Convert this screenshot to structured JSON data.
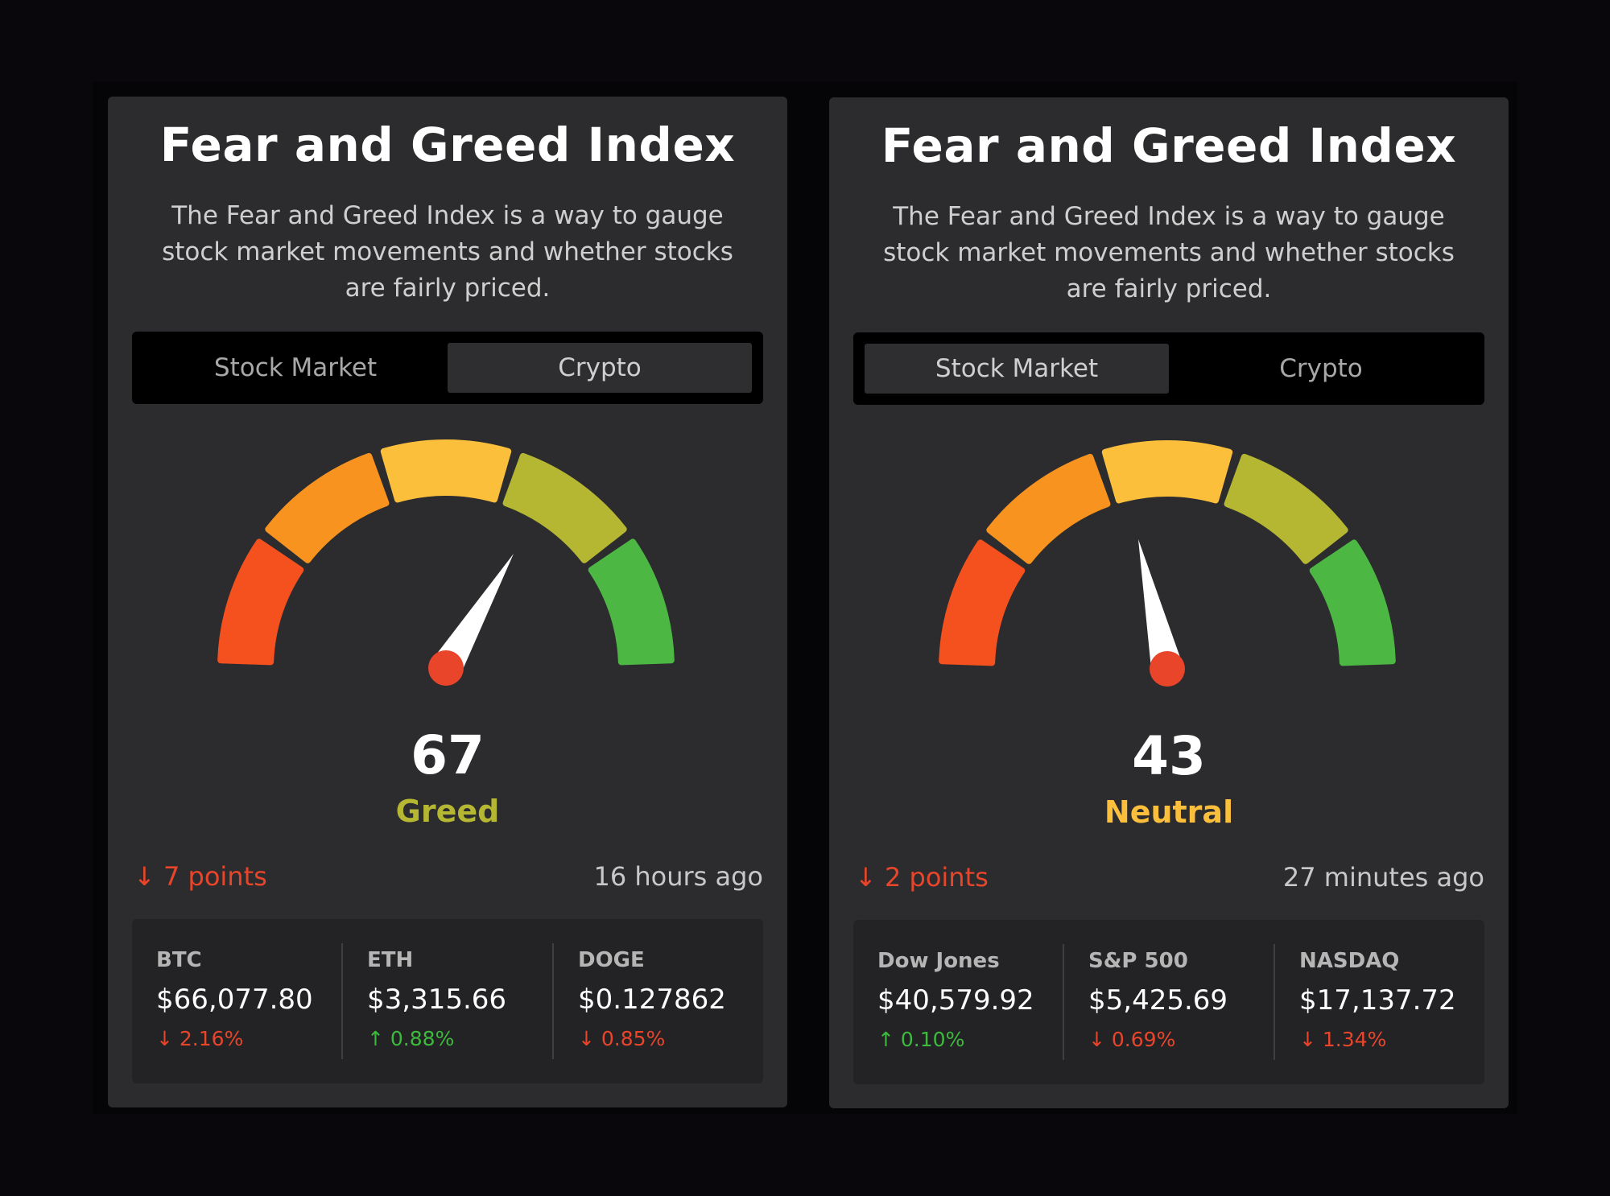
{
  "colors": {
    "fear": "#f4511e",
    "fear_mid": "#f7931e",
    "neutral": "#fbbf3c",
    "greed_mid": "#b5b733",
    "greed": "#4cb843",
    "needle": "#ffffff",
    "needle_hub": "#e8452b",
    "greed_label": "#b5b733",
    "neutral_label": "#fbbf3c",
    "down": "#e8452b",
    "up": "#3dba3d"
  },
  "cards": [
    {
      "title": "Fear and Greed Index",
      "description": "The Fear and Greed Index is a way to gauge stock market movements and whether stocks are fairly priced.",
      "tabs": [
        "Stock Market",
        "Crypto"
      ],
      "active_tab": "Crypto",
      "score": "67",
      "score_value": 67,
      "label": "Greed",
      "change": "7 points",
      "change_direction": "down",
      "updated": "16 hours ago",
      "tickers": [
        {
          "name": "BTC",
          "price": "$66,077.80",
          "change": "2.16%",
          "direction": "down"
        },
        {
          "name": "ETH",
          "price": "$3,315.66",
          "change": "0.88%",
          "direction": "up"
        },
        {
          "name": "DOGE",
          "price": "$0.127862",
          "change": "0.85%",
          "direction": "down"
        }
      ]
    },
    {
      "title": "Fear and Greed Index",
      "description": "The Fear and Greed Index is a way to gauge stock market movements and whether stocks are fairly priced.",
      "tabs": [
        "Stock Market",
        "Crypto"
      ],
      "active_tab": "Stock Market",
      "score": "43",
      "score_value": 43,
      "label": "Neutral",
      "change": "2 points",
      "change_direction": "down",
      "updated": "27 minutes ago",
      "tickers": [
        {
          "name": "Dow Jones",
          "price": "$40,579.92",
          "change": "0.10%",
          "direction": "up"
        },
        {
          "name": "S&P 500",
          "price": "$5,425.69",
          "change": "0.69%",
          "direction": "down"
        },
        {
          "name": "NASDAQ",
          "price": "$17,137.72",
          "change": "1.34%",
          "direction": "down"
        }
      ]
    }
  ],
  "icons": {
    "down_arrow": "arrow-down-icon",
    "up_arrow": "arrow-up-icon"
  }
}
